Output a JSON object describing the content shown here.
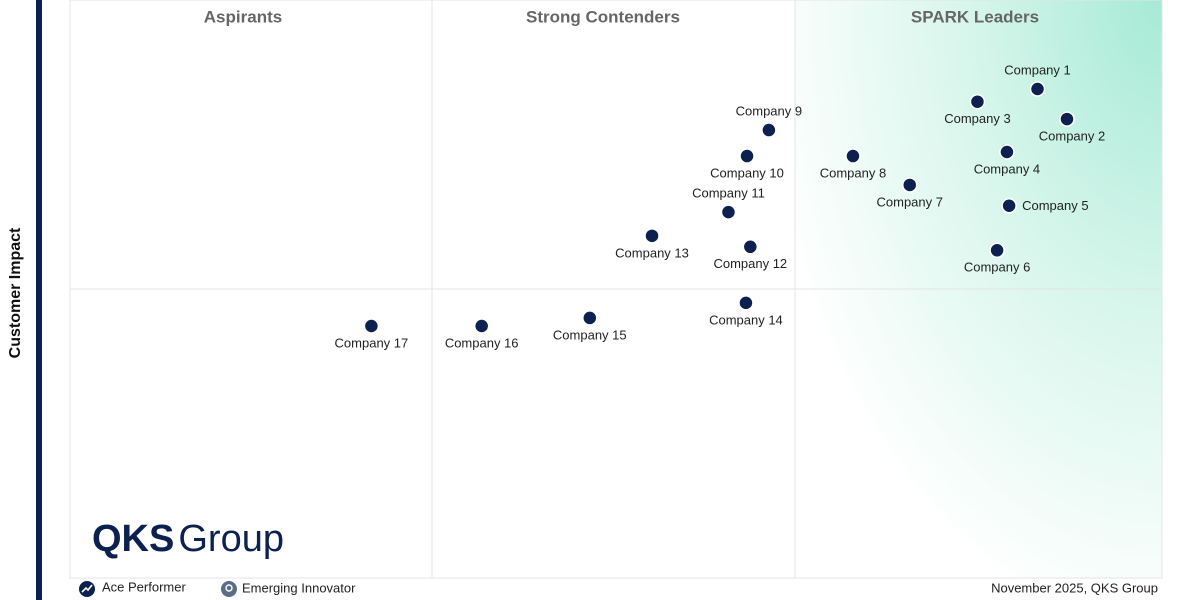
{
  "chart_data": {
    "type": "scatter",
    "y_label": "Customer Impact",
    "quadrants": [
      "Aspirants",
      "Strong Contenders",
      "SPARK Leaders"
    ],
    "xlim": [
      0,
      100
    ],
    "ylim": [
      0,
      100
    ],
    "color": "#0d2150",
    "names": [
      "Company 1",
      "Company 2",
      "Company 3",
      "Company 4",
      "Company 5",
      "Company 6",
      "Company 7",
      "Company 8",
      "Company 9",
      "Company 10",
      "Company 11",
      "Company 12",
      "Company 13",
      "Company 14",
      "Company 15",
      "Company 16",
      "Company 17"
    ],
    "x": [
      88.6,
      91.3,
      83.1,
      85.8,
      86.0,
      84.9,
      76.9,
      71.7,
      64.0,
      62.0,
      60.3,
      62.3,
      53.3,
      61.9,
      47.6,
      37.7,
      27.6
    ],
    "y": [
      84.6,
      79.4,
      82.4,
      73.7,
      64.4,
      56.7,
      68.0,
      73.0,
      77.5,
      73.0,
      63.3,
      57.3,
      59.2,
      47.6,
      45.0,
      43.6,
      43.6
    ]
  },
  "legend": [
    "Ace Performer",
    "Emerging Innovator"
  ],
  "logo": {
    "bold": "QKS",
    "light": "Group"
  },
  "footer": "November 2025, QKS Group"
}
